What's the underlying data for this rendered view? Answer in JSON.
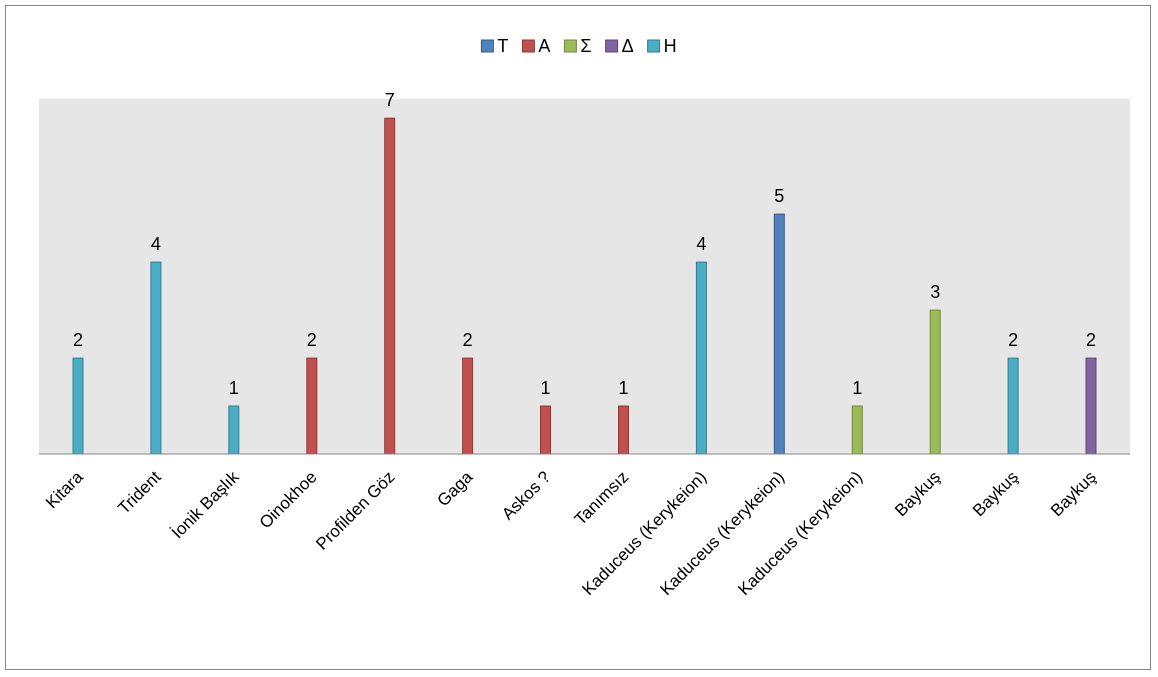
{
  "chart_data": {
    "type": "bar",
    "title": "",
    "xlabel": "",
    "ylabel": "",
    "ylim": [
      0,
      7.4
    ],
    "grid": false,
    "legend_position": "top",
    "categories": [
      "Kitara",
      "Trident",
      "İonik Başlık",
      "Oinokhoe",
      "Profilden Göz",
      "Gaga",
      "Askos ?",
      "Tanımsız",
      "Kaduceus (Kerykeion)",
      "Kaduceus (Kerykeion)",
      "Kaduceus (Kerykeion)",
      "Baykuş",
      "Baykuş",
      "Baykuş"
    ],
    "series": [
      {
        "name": "T",
        "color": "#4F81BD",
        "values": [
          null,
          null,
          null,
          null,
          null,
          null,
          null,
          null,
          null,
          5,
          null,
          null,
          null,
          null
        ]
      },
      {
        "name": "A",
        "color": "#C0504D",
        "values": [
          null,
          null,
          null,
          2,
          7,
          2,
          1,
          1,
          null,
          null,
          null,
          null,
          null,
          null
        ]
      },
      {
        "name": "Σ",
        "color": "#9BBB59",
        "values": [
          null,
          null,
          null,
          null,
          null,
          null,
          null,
          null,
          null,
          null,
          1,
          3,
          null,
          null
        ]
      },
      {
        "name": "Δ",
        "color": "#8064A2",
        "values": [
          null,
          null,
          null,
          null,
          null,
          null,
          null,
          null,
          null,
          null,
          null,
          null,
          null,
          2
        ]
      },
      {
        "name": "H",
        "color": "#4BACC6",
        "values": [
          2,
          4,
          1,
          null,
          null,
          null,
          null,
          null,
          4,
          null,
          null,
          null,
          2,
          null
        ]
      }
    ],
    "data_labels": true,
    "plot_background": "#E6E6E6"
  }
}
